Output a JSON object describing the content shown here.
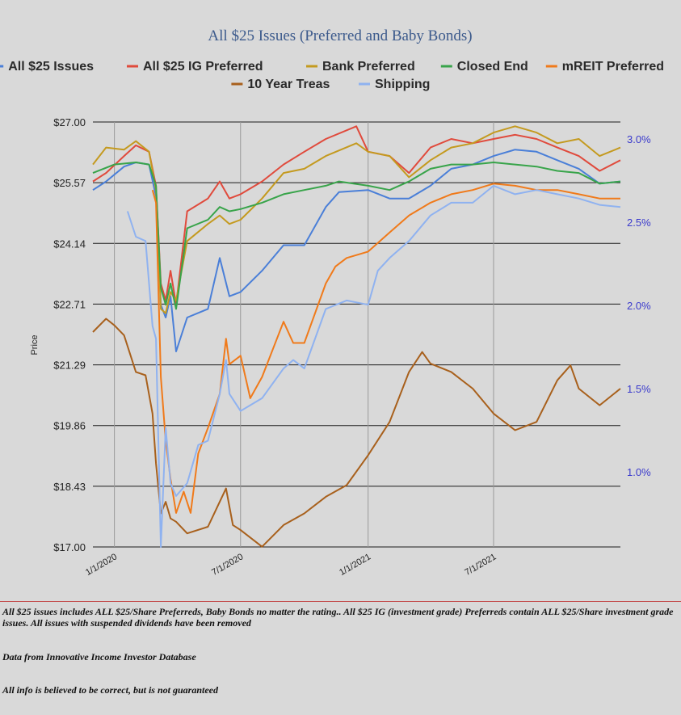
{
  "chart_data": {
    "type": "line",
    "title": "All $25 Issues (Preferred and Baby Bonds)",
    "ylabel": "Price",
    "y_left_ticks": [
      "$27.00",
      "$25.57",
      "$24.14",
      "$22.71",
      "$21.29",
      "$19.86",
      "$18.43",
      "$17.00"
    ],
    "y_left_lim": [
      17.0,
      27.0
    ],
    "y_right_ticks": [
      "3.0%",
      "2.5%",
      "2.0%",
      "1.5%",
      "1.0%"
    ],
    "y_right_lim": [
      0.55,
      3.1
    ],
    "x_ticks": [
      "1/1/2020",
      "7/1/2020",
      "1/1/2021",
      "7/1/2021"
    ],
    "x_lim": [
      "2019-12-01",
      "2021-12-31"
    ],
    "legend_position": "top",
    "grid": "horizontal",
    "series": [
      {
        "name": "All $25 Issues",
        "color": "#4a7fd8",
        "axis": "left",
        "points": [
          [
            "2019-12-01",
            25.4
          ],
          [
            "2019-12-20",
            25.6
          ],
          [
            "2020-01-15",
            25.95
          ],
          [
            "2020-02-01",
            26.05
          ],
          [
            "2020-02-20",
            26.0
          ],
          [
            "2020-03-01",
            25.25
          ],
          [
            "2020-03-08",
            22.7
          ],
          [
            "2020-03-15",
            22.4
          ],
          [
            "2020-03-22",
            22.9
          ],
          [
            "2020-03-30",
            21.6
          ],
          [
            "2020-04-15",
            22.4
          ],
          [
            "2020-05-15",
            22.6
          ],
          [
            "2020-06-01",
            23.8
          ],
          [
            "2020-06-15",
            22.9
          ],
          [
            "2020-07-01",
            23.0
          ],
          [
            "2020-08-01",
            23.5
          ],
          [
            "2020-09-01",
            24.1
          ],
          [
            "2020-10-01",
            24.1
          ],
          [
            "2020-11-01",
            25.0
          ],
          [
            "2020-11-20",
            25.35
          ],
          [
            "2021-01-01",
            25.4
          ],
          [
            "2021-02-01",
            25.2
          ],
          [
            "2021-03-01",
            25.2
          ],
          [
            "2021-04-01",
            25.5
          ],
          [
            "2021-05-01",
            25.9
          ],
          [
            "2021-06-01",
            26.0
          ],
          [
            "2021-07-01",
            26.2
          ],
          [
            "2021-08-01",
            26.35
          ],
          [
            "2021-09-01",
            26.3
          ],
          [
            "2021-10-01",
            26.1
          ],
          [
            "2021-11-01",
            25.9
          ],
          [
            "2021-12-01",
            25.55
          ],
          [
            "2021-12-31",
            25.6
          ]
        ]
      },
      {
        "name": "All $25 IG Preferred",
        "color": "#e04a3c",
        "axis": "left",
        "points": [
          [
            "2019-12-01",
            25.6
          ],
          [
            "2019-12-20",
            25.8
          ],
          [
            "2020-01-15",
            26.2
          ],
          [
            "2020-02-01",
            26.45
          ],
          [
            "2020-02-20",
            26.3
          ],
          [
            "2020-03-01",
            25.5
          ],
          [
            "2020-03-08",
            23.2
          ],
          [
            "2020-03-15",
            22.8
          ],
          [
            "2020-03-22",
            23.5
          ],
          [
            "2020-03-30",
            22.7
          ],
          [
            "2020-04-15",
            24.9
          ],
          [
            "2020-05-15",
            25.2
          ],
          [
            "2020-06-01",
            25.6
          ],
          [
            "2020-06-15",
            25.2
          ],
          [
            "2020-07-01",
            25.3
          ],
          [
            "2020-08-01",
            25.6
          ],
          [
            "2020-09-01",
            26.0
          ],
          [
            "2020-10-01",
            26.3
          ],
          [
            "2020-11-01",
            26.6
          ],
          [
            "2020-12-15",
            26.9
          ],
          [
            "2021-01-01",
            26.3
          ],
          [
            "2021-02-01",
            26.2
          ],
          [
            "2021-03-01",
            25.8
          ],
          [
            "2021-04-01",
            26.4
          ],
          [
            "2021-05-01",
            26.6
          ],
          [
            "2021-06-01",
            26.5
          ],
          [
            "2021-07-01",
            26.6
          ],
          [
            "2021-08-01",
            26.7
          ],
          [
            "2021-09-01",
            26.6
          ],
          [
            "2021-10-01",
            26.4
          ],
          [
            "2021-11-01",
            26.2
          ],
          [
            "2021-12-01",
            25.85
          ],
          [
            "2021-12-31",
            26.1
          ]
        ]
      },
      {
        "name": "Bank Preferred",
        "color": "#c49a1f",
        "axis": "left",
        "points": [
          [
            "2019-12-01",
            26.0
          ],
          [
            "2019-12-20",
            26.4
          ],
          [
            "2020-01-15",
            26.35
          ],
          [
            "2020-02-01",
            26.55
          ],
          [
            "2020-02-20",
            26.3
          ],
          [
            "2020-03-01",
            25.4
          ],
          [
            "2020-03-08",
            22.6
          ],
          [
            "2020-03-15",
            22.5
          ],
          [
            "2020-03-22",
            23.0
          ],
          [
            "2020-03-30",
            22.8
          ],
          [
            "2020-04-15",
            24.2
          ],
          [
            "2020-05-15",
            24.6
          ],
          [
            "2020-06-01",
            24.8
          ],
          [
            "2020-06-15",
            24.6
          ],
          [
            "2020-07-01",
            24.7
          ],
          [
            "2020-08-01",
            25.2
          ],
          [
            "2020-09-01",
            25.8
          ],
          [
            "2020-10-01",
            25.9
          ],
          [
            "2020-11-01",
            26.2
          ],
          [
            "2020-12-15",
            26.5
          ],
          [
            "2021-01-01",
            26.3
          ],
          [
            "2021-02-01",
            26.2
          ],
          [
            "2021-03-01",
            25.7
          ],
          [
            "2021-04-01",
            26.1
          ],
          [
            "2021-05-01",
            26.4
          ],
          [
            "2021-06-01",
            26.5
          ],
          [
            "2021-07-01",
            26.75
          ],
          [
            "2021-08-01",
            26.9
          ],
          [
            "2021-09-01",
            26.75
          ],
          [
            "2021-10-01",
            26.5
          ],
          [
            "2021-11-01",
            26.6
          ],
          [
            "2021-12-01",
            26.2
          ],
          [
            "2021-12-31",
            26.4
          ]
        ]
      },
      {
        "name": "Closed End",
        "color": "#38a44a",
        "axis": "left",
        "points": [
          [
            "2019-12-01",
            25.8
          ],
          [
            "2020-01-01",
            26.0
          ],
          [
            "2020-02-01",
            26.05
          ],
          [
            "2020-02-20",
            26.0
          ],
          [
            "2020-03-01",
            25.5
          ],
          [
            "2020-03-08",
            23.1
          ],
          [
            "2020-03-15",
            22.7
          ],
          [
            "2020-03-22",
            23.2
          ],
          [
            "2020-03-30",
            22.6
          ],
          [
            "2020-04-15",
            24.5
          ],
          [
            "2020-05-15",
            24.7
          ],
          [
            "2020-06-01",
            25.0
          ],
          [
            "2020-06-15",
            24.9
          ],
          [
            "2020-07-01",
            24.95
          ],
          [
            "2020-08-01",
            25.1
          ],
          [
            "2020-09-01",
            25.3
          ],
          [
            "2020-10-01",
            25.4
          ],
          [
            "2020-11-01",
            25.5
          ],
          [
            "2020-11-20",
            25.6
          ],
          [
            "2021-01-01",
            25.5
          ],
          [
            "2021-02-01",
            25.4
          ],
          [
            "2021-03-01",
            25.6
          ],
          [
            "2021-04-01",
            25.9
          ],
          [
            "2021-05-01",
            26.0
          ],
          [
            "2021-06-01",
            26.0
          ],
          [
            "2021-07-01",
            26.05
          ],
          [
            "2021-08-01",
            26.0
          ],
          [
            "2021-09-01",
            25.95
          ],
          [
            "2021-10-01",
            25.85
          ],
          [
            "2021-11-01",
            25.8
          ],
          [
            "2021-12-01",
            25.55
          ],
          [
            "2021-12-31",
            25.6
          ]
        ]
      },
      {
        "name": "mREIT Preferred",
        "color": "#f07a1a",
        "axis": "left",
        "points": [
          [
            "2020-02-25",
            25.4
          ],
          [
            "2020-03-01",
            25.1
          ],
          [
            "2020-03-08",
            21.0
          ],
          [
            "2020-03-15",
            19.5
          ],
          [
            "2020-03-22",
            18.6
          ],
          [
            "2020-03-30",
            17.8
          ],
          [
            "2020-04-10",
            18.3
          ],
          [
            "2020-04-20",
            17.8
          ],
          [
            "2020-05-01",
            19.2
          ],
          [
            "2020-05-15",
            19.8
          ],
          [
            "2020-06-01",
            20.6
          ],
          [
            "2020-06-10",
            21.9
          ],
          [
            "2020-06-15",
            21.3
          ],
          [
            "2020-07-01",
            21.5
          ],
          [
            "2020-07-15",
            20.5
          ],
          [
            "2020-08-01",
            21.0
          ],
          [
            "2020-09-01",
            22.3
          ],
          [
            "2020-09-15",
            21.8
          ],
          [
            "2020-10-01",
            21.8
          ],
          [
            "2020-11-01",
            23.2
          ],
          [
            "2020-11-15",
            23.6
          ],
          [
            "2020-12-01",
            23.8
          ],
          [
            "2021-01-01",
            23.95
          ],
          [
            "2021-02-01",
            24.4
          ],
          [
            "2021-03-01",
            24.8
          ],
          [
            "2021-04-01",
            25.1
          ],
          [
            "2021-05-01",
            25.3
          ],
          [
            "2021-06-01",
            25.4
          ],
          [
            "2021-07-01",
            25.55
          ],
          [
            "2021-08-01",
            25.5
          ],
          [
            "2021-09-01",
            25.4
          ],
          [
            "2021-10-01",
            25.4
          ],
          [
            "2021-11-01",
            25.3
          ],
          [
            "2021-12-01",
            25.2
          ],
          [
            "2021-12-31",
            25.2
          ]
        ]
      },
      {
        "name": "10 Year Treas",
        "color": "#a8601c",
        "axis": "right",
        "points": [
          [
            "2019-12-01",
            1.84
          ],
          [
            "2019-12-20",
            1.92
          ],
          [
            "2020-01-01",
            1.88
          ],
          [
            "2020-01-15",
            1.82
          ],
          [
            "2020-02-01",
            1.6
          ],
          [
            "2020-02-15",
            1.58
          ],
          [
            "2020-02-25",
            1.35
          ],
          [
            "2020-03-01",
            1.05
          ],
          [
            "2020-03-08",
            0.75
          ],
          [
            "2020-03-15",
            0.82
          ],
          [
            "2020-03-22",
            0.72
          ],
          [
            "2020-03-30",
            0.7
          ],
          [
            "2020-04-15",
            0.63
          ],
          [
            "2020-05-15",
            0.67
          ],
          [
            "2020-06-10",
            0.9
          ],
          [
            "2020-06-20",
            0.68
          ],
          [
            "2020-07-01",
            0.65
          ],
          [
            "2020-08-01",
            0.55
          ],
          [
            "2020-09-01",
            0.68
          ],
          [
            "2020-10-01",
            0.75
          ],
          [
            "2020-11-01",
            0.85
          ],
          [
            "2020-12-01",
            0.92
          ],
          [
            "2021-01-01",
            1.1
          ],
          [
            "2021-02-01",
            1.3
          ],
          [
            "2021-03-01",
            1.6
          ],
          [
            "2021-03-20",
            1.72
          ],
          [
            "2021-04-01",
            1.65
          ],
          [
            "2021-05-01",
            1.6
          ],
          [
            "2021-06-01",
            1.5
          ],
          [
            "2021-07-01",
            1.35
          ],
          [
            "2021-08-01",
            1.25
          ],
          [
            "2021-09-01",
            1.3
          ],
          [
            "2021-10-01",
            1.55
          ],
          [
            "2021-10-20",
            1.64
          ],
          [
            "2021-11-01",
            1.5
          ],
          [
            "2021-12-01",
            1.4
          ],
          [
            "2021-12-31",
            1.5
          ]
        ]
      },
      {
        "name": "Shipping",
        "color": "#8fb2f0",
        "axis": "left",
        "points": [
          [
            "2020-01-20",
            24.9
          ],
          [
            "2020-02-01",
            24.3
          ],
          [
            "2020-02-15",
            24.2
          ],
          [
            "2020-02-25",
            22.2
          ],
          [
            "2020-03-01",
            21.9
          ],
          [
            "2020-03-08",
            17.0
          ],
          [
            "2020-03-15",
            19.8
          ],
          [
            "2020-03-22",
            18.5
          ],
          [
            "2020-03-30",
            18.2
          ],
          [
            "2020-04-15",
            18.5
          ],
          [
            "2020-05-01",
            19.4
          ],
          [
            "2020-05-15",
            19.5
          ],
          [
            "2020-06-01",
            20.6
          ],
          [
            "2020-06-10",
            21.4
          ],
          [
            "2020-06-15",
            20.6
          ],
          [
            "2020-07-01",
            20.2
          ],
          [
            "2020-08-01",
            20.5
          ],
          [
            "2020-09-01",
            21.2
          ],
          [
            "2020-09-15",
            21.4
          ],
          [
            "2020-10-01",
            21.2
          ],
          [
            "2020-11-01",
            22.6
          ],
          [
            "2020-12-01",
            22.8
          ],
          [
            "2021-01-01",
            22.7
          ],
          [
            "2021-01-15",
            23.5
          ],
          [
            "2021-02-01",
            23.8
          ],
          [
            "2021-03-01",
            24.2
          ],
          [
            "2021-04-01",
            24.8
          ],
          [
            "2021-05-01",
            25.1
          ],
          [
            "2021-06-01",
            25.1
          ],
          [
            "2021-07-01",
            25.5
          ],
          [
            "2021-08-01",
            25.3
          ],
          [
            "2021-09-01",
            25.4
          ],
          [
            "2021-10-01",
            25.3
          ],
          [
            "2021-11-01",
            25.2
          ],
          [
            "2021-12-01",
            25.05
          ],
          [
            "2021-12-31",
            25.0
          ]
        ]
      }
    ]
  },
  "notes": [
    "All $25 issues includes ALL $25/Share Preferreds, Baby Bonds no matter the rating..  All $25 IG (investment grade) Preferreds contain ALL $25/Share investment grade issues.  All issues with suspended dividends have been removed",
    "Data from Innovative Income Investor Database",
    "All info is believed to be correct, but is not guaranteed"
  ]
}
